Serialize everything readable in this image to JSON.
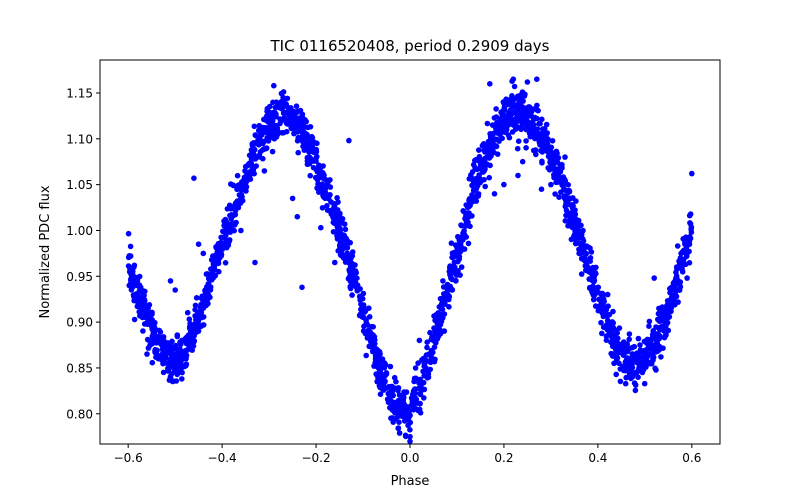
{
  "chart_data": {
    "type": "scatter",
    "title": "TIC 0116520408, period 0.2909 days",
    "xlabel": "Phase",
    "ylabel": "Normalized PDC flux",
    "xlim": [
      -0.66,
      0.66
    ],
    "ylim": [
      0.767,
      1.186
    ],
    "x_ticks": [
      -0.6,
      -0.4,
      -0.2,
      0.0,
      0.2,
      0.4,
      0.6
    ],
    "x_tick_labels": [
      "−0.6",
      "−0.4",
      "−0.2",
      "0.0",
      "0.2",
      "0.4",
      "0.6"
    ],
    "y_ticks": [
      0.8,
      0.85,
      0.9,
      0.95,
      1.0,
      1.05,
      1.1,
      1.15
    ],
    "y_tick_labels": [
      "0.80",
      "0.85",
      "0.90",
      "0.95",
      "1.00",
      "1.05",
      "1.10",
      "1.15"
    ],
    "grid": false,
    "legend": "none",
    "marker_color": "#0000ff",
    "series": [
      {
        "curve": [
          [
            -0.6,
            0.965
          ],
          [
            -0.58,
            0.935
          ],
          [
            -0.56,
            0.905
          ],
          [
            -0.54,
            0.878
          ],
          [
            -0.52,
            0.862
          ],
          [
            -0.5,
            0.856
          ],
          [
            -0.48,
            0.865
          ],
          [
            -0.46,
            0.89
          ],
          [
            -0.44,
            0.92
          ],
          [
            -0.42,
            0.952
          ],
          [
            -0.4,
            0.985
          ],
          [
            -0.38,
            1.015
          ],
          [
            -0.36,
            1.045
          ],
          [
            -0.34,
            1.072
          ],
          [
            -0.32,
            1.095
          ],
          [
            -0.3,
            1.112
          ],
          [
            -0.28,
            1.122
          ],
          [
            -0.26,
            1.123
          ],
          [
            -0.24,
            1.115
          ],
          [
            -0.22,
            1.098
          ],
          [
            -0.2,
            1.073
          ],
          [
            -0.18,
            1.045
          ],
          [
            -0.16,
            1.015
          ],
          [
            -0.14,
            0.982
          ],
          [
            -0.12,
            0.948
          ],
          [
            -0.1,
            0.912
          ],
          [
            -0.08,
            0.875
          ],
          [
            -0.06,
            0.842
          ],
          [
            -0.04,
            0.818
          ],
          [
            -0.02,
            0.803
          ],
          [
            0.0,
            0.808
          ],
          [
            0.02,
            0.828
          ],
          [
            0.04,
            0.858
          ],
          [
            0.06,
            0.893
          ],
          [
            0.08,
            0.932
          ],
          [
            0.1,
            0.972
          ],
          [
            0.12,
            1.012
          ],
          [
            0.14,
            1.05
          ],
          [
            0.16,
            1.082
          ],
          [
            0.18,
            1.107
          ],
          [
            0.2,
            1.122
          ],
          [
            0.22,
            1.13
          ],
          [
            0.24,
            1.128
          ],
          [
            0.26,
            1.118
          ],
          [
            0.28,
            1.102
          ],
          [
            0.3,
            1.08
          ],
          [
            0.32,
            1.055
          ],
          [
            0.34,
            1.025
          ],
          [
            0.36,
            0.993
          ],
          [
            0.38,
            0.96
          ],
          [
            0.4,
            0.928
          ],
          [
            0.42,
            0.898
          ],
          [
            0.44,
            0.873
          ],
          [
            0.46,
            0.858
          ],
          [
            0.48,
            0.852
          ],
          [
            0.5,
            0.858
          ],
          [
            0.52,
            0.875
          ],
          [
            0.54,
            0.9
          ],
          [
            0.56,
            0.93
          ],
          [
            0.58,
            0.965
          ],
          [
            0.6,
            0.998
          ]
        ],
        "outliers": [
          [
            -0.29,
            1.158
          ],
          [
            -0.23,
            0.938
          ],
          [
            -0.24,
            1.015
          ],
          [
            -0.25,
            1.035
          ],
          [
            -0.31,
            1.065
          ],
          [
            -0.46,
            1.057
          ],
          [
            -0.5,
            0.935
          ],
          [
            -0.51,
            0.945
          ],
          [
            -0.33,
            0.965
          ],
          [
            -0.36,
            1.0
          ],
          [
            -0.44,
            0.975
          ],
          [
            -0.45,
            0.985
          ],
          [
            -0.13,
            1.098
          ],
          [
            -0.19,
            1.003
          ],
          [
            -0.16,
            0.965
          ],
          [
            0.0,
            0.77
          ],
          [
            0.0,
            0.775
          ],
          [
            -0.03,
            0.835
          ],
          [
            0.02,
            0.88
          ],
          [
            0.04,
            0.865
          ],
          [
            0.06,
            0.91
          ],
          [
            0.11,
            0.96
          ],
          [
            0.16,
            1.048
          ],
          [
            0.18,
            1.04
          ],
          [
            0.17,
            1.16
          ],
          [
            0.22,
            1.165
          ],
          [
            0.25,
            1.162
          ],
          [
            0.27,
            1.165
          ],
          [
            0.24,
            1.075
          ],
          [
            0.23,
            1.06
          ],
          [
            0.28,
            1.045
          ],
          [
            0.3,
            1.05
          ],
          [
            0.32,
            1.065
          ],
          [
            0.33,
            1.08
          ],
          [
            0.35,
            0.995
          ],
          [
            0.37,
            0.968
          ],
          [
            0.52,
            0.948
          ],
          [
            0.53,
            0.915
          ],
          [
            0.55,
            0.905
          ],
          [
            0.57,
            0.983
          ],
          [
            0.6,
            1.062
          ],
          [
            0.57,
            0.935
          ],
          [
            0.2,
            1.05
          ],
          [
            0.07,
            0.945
          ],
          [
            0.09,
            0.935
          ],
          [
            0.48,
            0.865
          ],
          [
            0.59,
            0.948
          ]
        ]
      }
    ]
  }
}
